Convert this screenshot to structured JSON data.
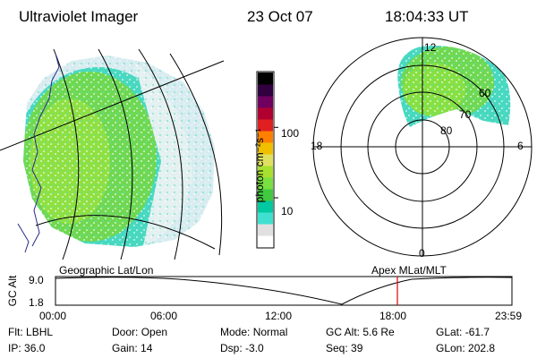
{
  "header": {
    "instrument": "Ultraviolet Imager",
    "date": "23 Oct 07",
    "time": "18:04:33 UT"
  },
  "colorbar": {
    "unit_label": "photon cm⁻²s⁻¹",
    "ticks": [
      {
        "label": "100",
        "value": 100
      },
      {
        "label": "10",
        "value": 10
      }
    ],
    "colors": [
      "#ffffff",
      "#e0e0e0",
      "#40e0d0",
      "#00c8a0",
      "#40c840",
      "#78e040",
      "#a8e030",
      "#e0e060",
      "#f0c000",
      "#ff8000",
      "#e02020",
      "#b00030",
      "#700060",
      "#300040",
      "#000000"
    ]
  },
  "geo_panel": {
    "label": "Geographic Lat/Lon"
  },
  "polar_panel": {
    "label": "Apex MLat/MLT",
    "mlt_labels": {
      "top": "12",
      "left": "18",
      "right": "6",
      "bottom": "0"
    },
    "lat_labels": [
      "60",
      "70",
      "80"
    ]
  },
  "timeline": {
    "axis_label": "GC Alt",
    "y_ticks": [
      "9.0",
      "1.8"
    ],
    "x_ticks": [
      "00:00",
      "06:00",
      "12:00",
      "18:00",
      "23:59"
    ],
    "marker_time": "18:04"
  },
  "footer": {
    "row1": [
      {
        "key": "Flt:",
        "value": "LBHL"
      },
      {
        "key": "Door:",
        "value": "Open"
      },
      {
        "key": "Mode:",
        "value": "Normal"
      },
      {
        "key": "GC Alt:",
        "value": "5.6 Re"
      },
      {
        "key": "GLat:",
        "value": "-61.7"
      }
    ],
    "row2": [
      {
        "key": "IP:",
        "value": "36.0"
      },
      {
        "key": "Gain:",
        "value": "14"
      },
      {
        "key": "Dsp:",
        "value": "-3.0"
      },
      {
        "key": "Seq:",
        "value": "39"
      },
      {
        "key": "GLon:",
        "value": "202.8"
      }
    ]
  }
}
